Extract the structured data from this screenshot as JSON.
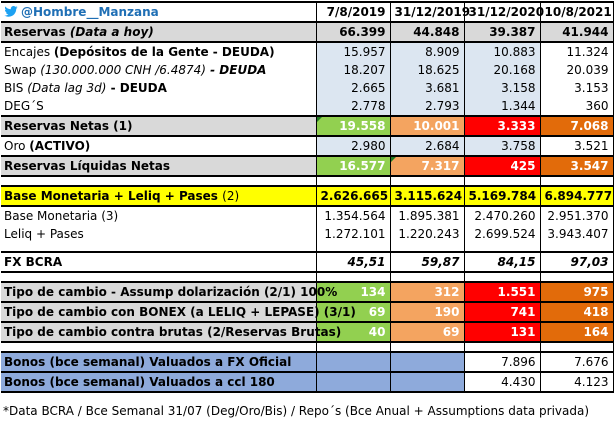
{
  "header": {
    "handle": "@Hombre__Manzana",
    "dates": [
      "7/8/2019",
      "31/12/2019",
      "31/12/2020",
      "10/8/2021"
    ]
  },
  "reservas": {
    "label_main": "Reservas ",
    "label_note": "(Data a hoy)",
    "values": [
      "66.399",
      "44.848",
      "39.387",
      "41.944"
    ]
  },
  "encajes": {
    "label_main": "Encajes ",
    "label_note": "(Depósitos de la Gente - DEUDA)",
    "values": [
      "15.957",
      "8.909",
      "10.883",
      "11.324"
    ]
  },
  "swap": {
    "label_main": "Swap ",
    "label_note": "(130.000.000 CNH /6.4874)",
    "label_tail": " - DEUDA",
    "values": [
      "18.207",
      "18.625",
      "20.168",
      "20.039"
    ]
  },
  "bis": {
    "label_main": "BIS ",
    "label_note": "(Data lag 3d)",
    "label_tail": " - DEUDA",
    "values": [
      "2.665",
      "3.681",
      "3.158",
      "3.153"
    ]
  },
  "degs": {
    "label": "DEG´S",
    "values": [
      "2.778",
      "2.793",
      "1.344",
      "360"
    ]
  },
  "reservas_netas": {
    "label": "Reservas Netas (1)",
    "values": [
      "19.558",
      "10.001",
      "3.333",
      "7.068"
    ]
  },
  "oro": {
    "label_main": "Oro ",
    "label_note": "(ACTIVO)",
    "values": [
      "2.980",
      "2.684",
      "3.758",
      "3.521"
    ]
  },
  "reservas_liquidas": {
    "label": "Reservas Líquidas Netas",
    "values": [
      "16.577",
      "7.317",
      "425",
      "3.547"
    ]
  },
  "base_total": {
    "label_main": "Base Monetaria + Leliq + Pases ",
    "label_note": "(2)",
    "values": [
      "2.626.665",
      "3.115.624",
      "5.169.784",
      "6.894.777"
    ]
  },
  "base_monetaria": {
    "label": "Base Monetaria (3)",
    "values": [
      "1.354.564",
      "1.895.381",
      "2.470.260",
      "2.951.370"
    ]
  },
  "leliq_pases": {
    "label": "Leliq + Pases",
    "values": [
      "1.272.101",
      "1.220.243",
      "2.699.524",
      "3.943.407"
    ]
  },
  "fx_bcra": {
    "label": "FX BCRA",
    "values": [
      "45,51",
      "59,87",
      "84,15",
      "97,03"
    ]
  },
  "tc_assump": {
    "label": "Tipo de cambio - Assump dolarización (2/1) 100%",
    "values": [
      "134",
      "312",
      "1.551",
      "975"
    ]
  },
  "tc_bonex": {
    "label": "Tipo de cambio con BONEX (a LELIQ + LEPASE) (3/1)",
    "values": [
      "69",
      "190",
      "741",
      "418"
    ]
  },
  "tc_brutas": {
    "label": "Tipo de cambio contra brutas (2/Reservas Brutas)",
    "values": [
      "40",
      "69",
      "131",
      "164"
    ]
  },
  "bonos_oficial": {
    "label": "Bonos (bce semanal) Valuados a FX Oficial",
    "values": [
      "",
      "",
      "7.896",
      "7.676"
    ]
  },
  "bonos_ccl": {
    "label": "Bonos (bce semanal) Valuados a ccl 180",
    "values": [
      "",
      "",
      "4.430",
      "4.123"
    ]
  },
  "footnote": "*Data BCRA / Bce Semanal 31/07 (Deg/Oro/Bis) / Repo´s (Bce Anual + Assumptions data privada)",
  "colors": {
    "green": "#92d050",
    "orange": "#f4a460",
    "red": "#ff0000",
    "dark_orange": "#e26b0a",
    "yellow": "#ffff00",
    "grey": "#d9d9d9",
    "light_blue": "#dce6f1",
    "steel_blue": "#8eaadb"
  },
  "icons": {
    "handle_icon": "twitter-bird-icon"
  }
}
